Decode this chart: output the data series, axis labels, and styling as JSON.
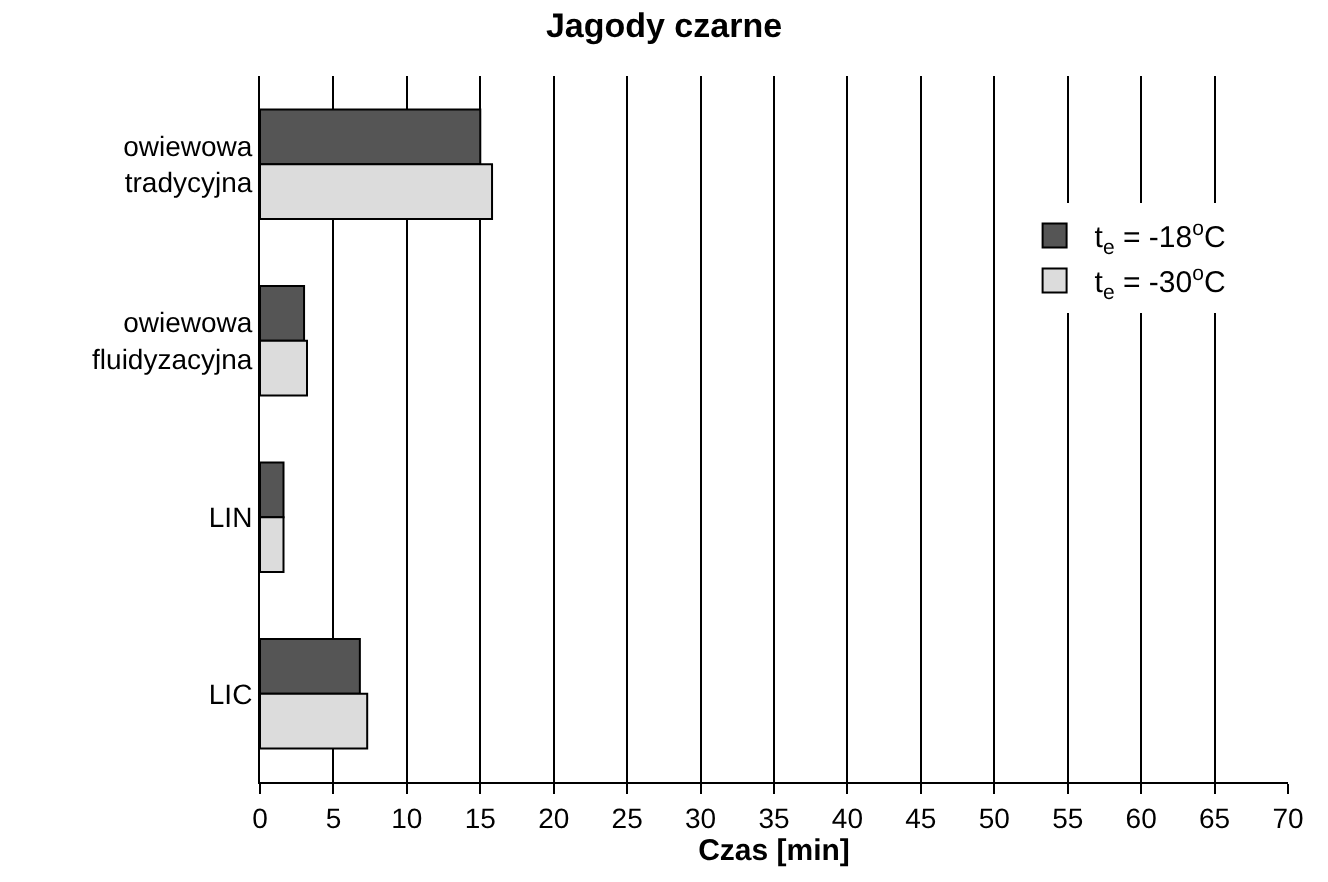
{
  "chart_data": {
    "type": "bar",
    "orientation": "horizontal",
    "title": "Jagody czarne",
    "xlabel": "Czas [min]",
    "categories": [
      "owiewowa\ntradycyjna",
      "owiewowa\nfluidyzacyjna",
      "LIN",
      "LIC"
    ],
    "series": [
      {
        "name": "t$_{e}$ = -18$^{o}$C",
        "color": "#555555",
        "values": [
          15.0,
          3.0,
          1.6,
          6.8
        ]
      },
      {
        "name": "t$_{e}$ = -30$^{o}$C",
        "color": "#dcdcdc",
        "values": [
          15.8,
          3.2,
          1.6,
          7.3
        ]
      }
    ],
    "xlim": [
      0,
      70
    ],
    "xticks": [
      0,
      5,
      10,
      15,
      20,
      25,
      30,
      35,
      40,
      45,
      50,
      55,
      60,
      65,
      70
    ],
    "grid": "x",
    "legend": "top right"
  }
}
